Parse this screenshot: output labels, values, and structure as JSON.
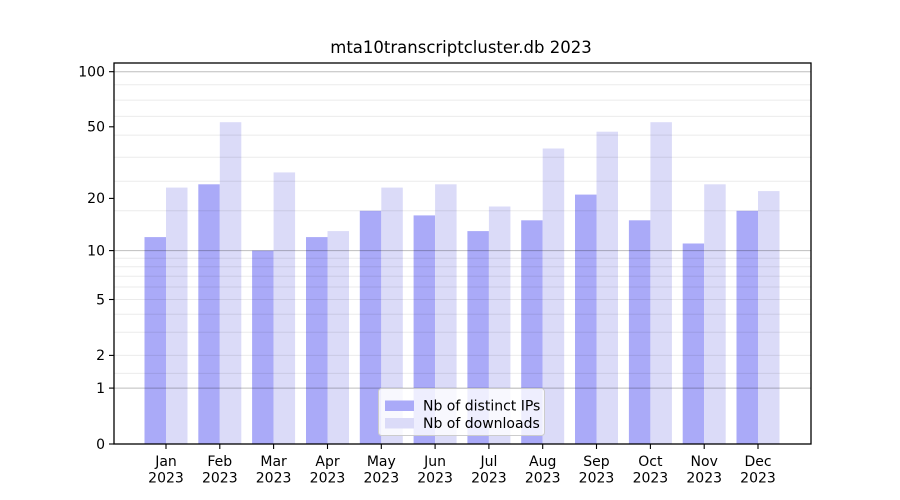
{
  "figure": {
    "background": "#ffffff"
  },
  "chart_data": {
    "type": "bar",
    "title": "mta10transcriptcluster.db 2023",
    "year_label": "2023",
    "categories": [
      "Jan",
      "Feb",
      "Mar",
      "Apr",
      "May",
      "Jun",
      "Jul",
      "Aug",
      "Sep",
      "Oct",
      "Nov",
      "Dec"
    ],
    "series": [
      {
        "name": "Nb of distinct IPs",
        "color": "#aaaaf8",
        "values": [
          12,
          24,
          10,
          12,
          17,
          16,
          13,
          15,
          21,
          15,
          11,
          17
        ]
      },
      {
        "name": "Nb of downloads",
        "color": "#dbdbf8",
        "values": [
          23,
          53,
          28,
          13,
          23,
          24,
          18,
          38,
          47,
          53,
          24,
          22
        ]
      }
    ],
    "xlabel": "",
    "ylabel": "",
    "yscale": "log10(1+x)",
    "ylim": [
      0,
      109
    ],
    "yticks": [
      100,
      50,
      20,
      10,
      5,
      2,
      1,
      0
    ],
    "grid": true,
    "major_gridlines": [
      1,
      10,
      100
    ],
    "minor_gridlines": [
      1.4,
      2,
      3,
      4,
      5,
      6,
      7,
      8,
      9,
      17,
      25,
      34,
      45,
      57,
      70,
      85
    ],
    "legend_position": "lower center",
    "colors": {
      "bar_ips": "#aaaaf8",
      "bar_downloads": "#dbdbf8",
      "major_grid": "rgba(0,0,0,0.26)",
      "minor_grid": "rgba(0,0,0,0.08)",
      "frame": "#000000",
      "legend_border": "#cccccc"
    }
  }
}
